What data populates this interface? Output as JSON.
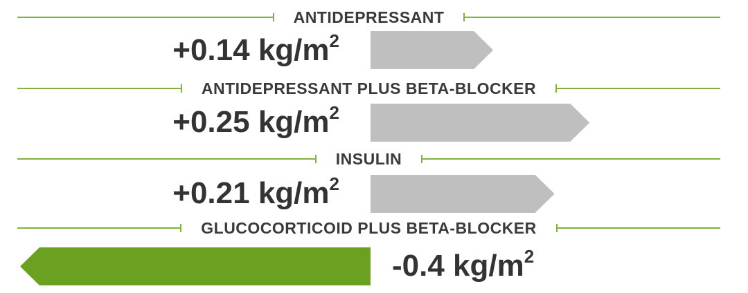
{
  "chart_data": {
    "type": "bar",
    "orientation": "horizontal-diverging",
    "categories": [
      "ANTIDEPRESSANT",
      "ANTIDEPRESSANT PLUS BETA-BLOCKER",
      "INSULIN",
      "GLUCOCORTICOID PLUS BETA-BLOCKER"
    ],
    "values": [
      0.14,
      0.25,
      0.21,
      -0.4
    ],
    "value_labels": [
      "+0.14 kg/m",
      "+0.25 kg/m",
      "+0.21 kg/m",
      "-0.4 kg/m"
    ],
    "unit_superscript": "2",
    "colors": {
      "positive": "#bfbfbf",
      "negative": "#6aa121",
      "rule": "#84b040",
      "text": "#333333"
    }
  }
}
